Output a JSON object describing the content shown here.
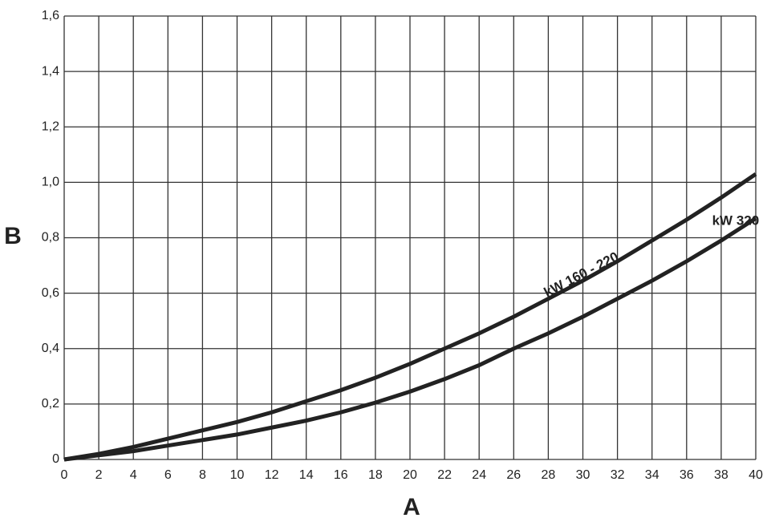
{
  "chart_data": {
    "type": "line",
    "x_label": "A",
    "y_label": "B",
    "x": [
      0,
      2,
      4,
      6,
      8,
      10,
      12,
      14,
      16,
      18,
      20,
      22,
      24,
      26,
      28,
      30,
      32,
      34,
      36,
      38,
      40
    ],
    "series": [
      {
        "name": "kW 160 - 220",
        "color": "#222222",
        "values": [
          0,
          0.02,
          0.045,
          0.075,
          0.105,
          0.135,
          0.17,
          0.21,
          0.25,
          0.295,
          0.345,
          0.4,
          0.455,
          0.515,
          0.58,
          0.645,
          0.715,
          0.79,
          0.865,
          0.945,
          1.03
        ]
      },
      {
        "name": "kW 320",
        "color": "#222222",
        "values": [
          0,
          0.015,
          0.03,
          0.05,
          0.07,
          0.09,
          0.115,
          0.14,
          0.17,
          0.205,
          0.245,
          0.29,
          0.34,
          0.4,
          0.455,
          0.515,
          0.58,
          0.645,
          0.715,
          0.79,
          0.87
        ]
      }
    ],
    "xlim": [
      0,
      40
    ],
    "ylim": [
      0,
      1.6
    ],
    "xticks": [
      0,
      2,
      4,
      6,
      8,
      10,
      12,
      14,
      16,
      18,
      20,
      22,
      24,
      26,
      28,
      30,
      32,
      34,
      36,
      38,
      40
    ],
    "yticks": [
      0,
      {
        "value": 0.2,
        "label": "0,2"
      },
      {
        "value": 0.4,
        "label": "0,4"
      },
      {
        "value": 0.6,
        "label": "0,6"
      },
      {
        "value": 0.8,
        "label": "0,8"
      },
      {
        "value": 1.0,
        "label": "1,0"
      },
      {
        "value": 1.2,
        "label": "1,2"
      },
      {
        "value": 1.4,
        "label": "1,4"
      },
      {
        "value": 1.6,
        "label": "1,6"
      }
    ],
    "grid": true
  }
}
